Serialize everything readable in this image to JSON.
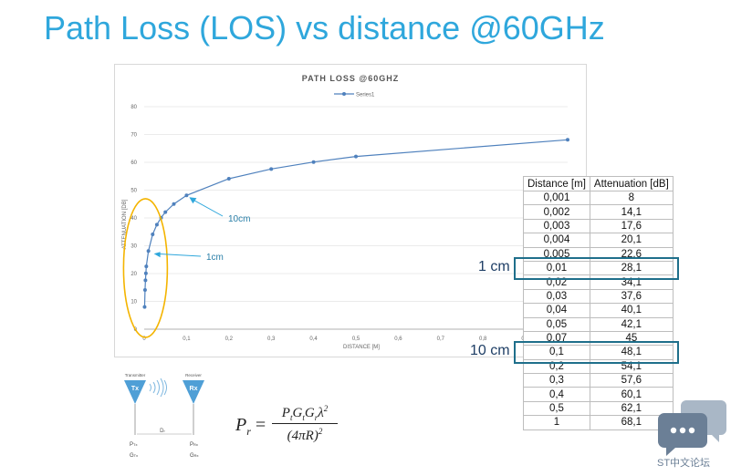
{
  "slide": {
    "title": "Path Loss (LOS) vs distance @60GHz"
  },
  "chart_data": {
    "type": "line",
    "title": "PATH LOSS @60GHZ",
    "xlabel": "DISTANCE [M]",
    "ylabel": "ATTENUATION [DB]",
    "xlim": [
      0,
      1
    ],
    "ylim": [
      0,
      80
    ],
    "xticks": [
      "0",
      "0,1",
      "0,2",
      "0,3",
      "0,4",
      "0,5",
      "0,6",
      "0,7",
      "0,8",
      "0,9"
    ],
    "yticks": [
      "0",
      "10",
      "20",
      "30",
      "40",
      "50",
      "60",
      "70",
      "80"
    ],
    "legend": "top-center",
    "grid": true,
    "series": [
      {
        "name": "Series1",
        "color": "#4f81bd",
        "x": [
          0.001,
          0.002,
          0.003,
          0.004,
          0.005,
          0.01,
          0.02,
          0.03,
          0.04,
          0.05,
          0.07,
          0.1,
          0.2,
          0.3,
          0.4,
          0.5,
          1
        ],
        "y": [
          8,
          14.1,
          17.6,
          20.1,
          22.6,
          28.1,
          34.1,
          37.6,
          40.1,
          42.1,
          45,
          48.1,
          54.1,
          57.6,
          60.1,
          62.1,
          68.1
        ]
      }
    ],
    "annotations": [
      {
        "text": "10cm",
        "x": 0.1,
        "y": 48.1
      },
      {
        "text": "1cm",
        "x": 0.01,
        "y": 28.1
      }
    ]
  },
  "table": {
    "headers": [
      "Distance [m]",
      "Attenuation [dB]"
    ],
    "rows": [
      [
        "0,001",
        "8"
      ],
      [
        "0,002",
        "14,1"
      ],
      [
        "0,003",
        "17,6"
      ],
      [
        "0,004",
        "20,1"
      ],
      [
        "0,005",
        "22,6"
      ],
      [
        "0,01",
        "28,1"
      ],
      [
        "0,02",
        "34,1"
      ],
      [
        "0,03",
        "37,6"
      ],
      [
        "0,04",
        "40,1"
      ],
      [
        "0,05",
        "42,1"
      ],
      [
        "0,07",
        "45"
      ],
      [
        "0,1",
        "48,1"
      ],
      [
        "0,2",
        "54,1"
      ],
      [
        "0,3",
        "57,6"
      ],
      [
        "0,4",
        "60,1"
      ],
      [
        "0,5",
        "62,1"
      ],
      [
        "1",
        "68,1"
      ]
    ]
  },
  "highlights": [
    {
      "label": "1 cm",
      "row": 5
    },
    {
      "label": "10 cm",
      "row": 11
    }
  ],
  "diagram": {
    "tx_top": "Transmitter",
    "rx_top": "Receiver",
    "tx_label": "Tx",
    "rx_label": "Rx",
    "distance": "D",
    "distance_sub": "r",
    "pt": "P",
    "pt_sub": "Tx",
    "gt": "G",
    "gt_sub": "Tx",
    "pr": "P",
    "pr_sub": "Rx",
    "gr": "G",
    "gr_sub": "Rx"
  },
  "formula": {
    "lhs": "P",
    "lhs_sub": "r",
    "numerator": "PtGtGrλ2",
    "denominator": "(4πR)2"
  },
  "watermark": {
    "text": "ST中文论坛"
  },
  "colors": {
    "title": "#2fa7dc",
    "series": "#4f81bd",
    "circle": "#f4b400",
    "callout": "#2fa7dc",
    "highlight": "#1f6f8b"
  }
}
